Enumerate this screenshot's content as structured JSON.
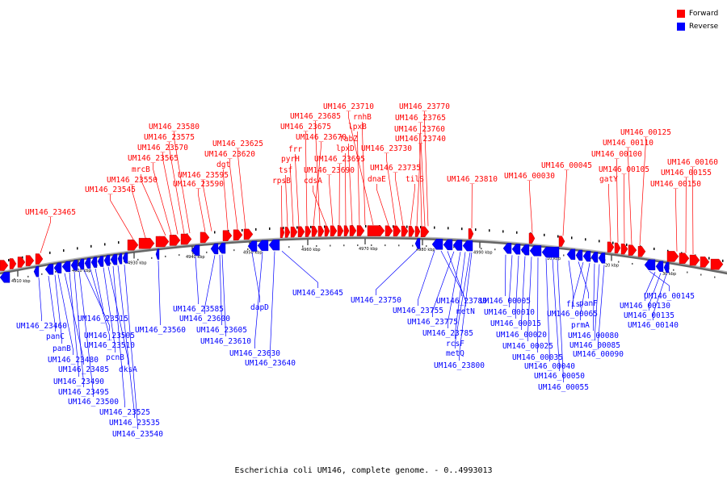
{
  "legend": {
    "forward_label": "Forward",
    "reverse_label": "Reverse"
  },
  "colors": {
    "forward": "#ff0000",
    "reverse": "#0000ff",
    "backbone": "#888888",
    "label_line": "#000000"
  },
  "caption": "Escherichia coli UM146, complete genome. - 0..4993013",
  "ticks": [
    "4910 kbp",
    "4920 kbp",
    "4930 kbp",
    "4940 kbp",
    "4950 kbp",
    "4960 kbp",
    "4970 kbp",
    "4980 kbp",
    "4990 kbp",
    "10 kbp",
    "20 kbp",
    "30 kbp"
  ],
  "forward_genes": [
    {
      "label": "UM146_23465"
    },
    {
      "label": "UM146_23545"
    },
    {
      "label": "UM146_23550"
    },
    {
      "label": "mrcB"
    },
    {
      "label": "UM146_23565"
    },
    {
      "label": "UM146_23570"
    },
    {
      "label": "UM146_23575"
    },
    {
      "label": "UM146_23580"
    },
    {
      "label": "UM146_23590"
    },
    {
      "label": "UM146_23595"
    },
    {
      "label": "dgt"
    },
    {
      "label": "UM146_23620"
    },
    {
      "label": "UM146_23625"
    },
    {
      "label": "rpsB"
    },
    {
      "label": "tsf"
    },
    {
      "label": "pyrH"
    },
    {
      "label": "frr"
    },
    {
      "label": "UM146_23675"
    },
    {
      "label": "UM146_23670"
    },
    {
      "label": "UM146_23685"
    },
    {
      "label": "cdsA"
    },
    {
      "label": "UM146_23690"
    },
    {
      "label": "UM146_23695"
    },
    {
      "label": "lpxD"
    },
    {
      "label": "fabZ"
    },
    {
      "label": "lpxB"
    },
    {
      "label": "rnhB"
    },
    {
      "label": "UM146_23710"
    },
    {
      "label": "dnaE"
    },
    {
      "label": "UM146_23730"
    },
    {
      "label": "UM146_23735"
    },
    {
      "label": "tilS"
    },
    {
      "label": "UM146_23740"
    },
    {
      "label": "UM146_23760"
    },
    {
      "label": "UM146_23765"
    },
    {
      "label": "UM146_23770"
    },
    {
      "label": "UM146_23810"
    },
    {
      "label": "UM146_00030"
    },
    {
      "label": "UM146_00045"
    },
    {
      "label": "gatY"
    },
    {
      "label": "UM146_00100"
    },
    {
      "label": "UM146_00105"
    },
    {
      "label": "UM146_00110"
    },
    {
      "label": "UM146_00125"
    },
    {
      "label": "UM146_00150"
    },
    {
      "label": "UM146_00155"
    },
    {
      "label": "UM146_00160"
    }
  ],
  "reverse_genes": [
    {
      "label": "UM146_23460"
    },
    {
      "label": "panC"
    },
    {
      "label": "panB"
    },
    {
      "label": "UM146_23480"
    },
    {
      "label": "UM146_23485"
    },
    {
      "label": "UM146_23490"
    },
    {
      "label": "UM146_23495"
    },
    {
      "label": "UM146_23500"
    },
    {
      "label": "UM146_23505"
    },
    {
      "label": "UM146_23510"
    },
    {
      "label": "UM146_23515"
    },
    {
      "label": "pcnB"
    },
    {
      "label": "dksA"
    },
    {
      "label": "UM146_23525"
    },
    {
      "label": "UM146_23535"
    },
    {
      "label": "UM146_23540"
    },
    {
      "label": "UM146_23560"
    },
    {
      "label": "UM146_23585"
    },
    {
      "label": "UM146_23600"
    },
    {
      "label": "UM146_23605"
    },
    {
      "label": "UM146_23610"
    },
    {
      "label": "dapD"
    },
    {
      "label": "UM146_23630"
    },
    {
      "label": "UM146_23640"
    },
    {
      "label": "UM146_23645"
    },
    {
      "label": "UM146_23750"
    },
    {
      "label": "UM146_23755"
    },
    {
      "label": "UM146_23780"
    },
    {
      "label": "metN"
    },
    {
      "label": "UM146_23775"
    },
    {
      "label": "UM146_23785"
    },
    {
      "label": "rcsF"
    },
    {
      "label": "metQ"
    },
    {
      "label": "UM146_23800"
    },
    {
      "label": "UM146_00005"
    },
    {
      "label": "UM146_00010"
    },
    {
      "label": "UM146_00015"
    },
    {
      "label": "UM146_00020"
    },
    {
      "label": "UM146_00025"
    },
    {
      "label": "UM146_00035"
    },
    {
      "label": "UM146_00040"
    },
    {
      "label": "UM146_00050"
    },
    {
      "label": "UM146_00055"
    },
    {
      "label": "fis"
    },
    {
      "label": "panF"
    },
    {
      "label": "UM146_00065"
    },
    {
      "label": "prmA"
    },
    {
      "label": "UM146_00080"
    },
    {
      "label": "UM146_00085"
    },
    {
      "label": "UM146_00090"
    },
    {
      "label": "UM146_00145"
    },
    {
      "label": "UM146_00130"
    },
    {
      "label": "UM146_00135"
    },
    {
      "label": "UM146_00140"
    }
  ]
}
